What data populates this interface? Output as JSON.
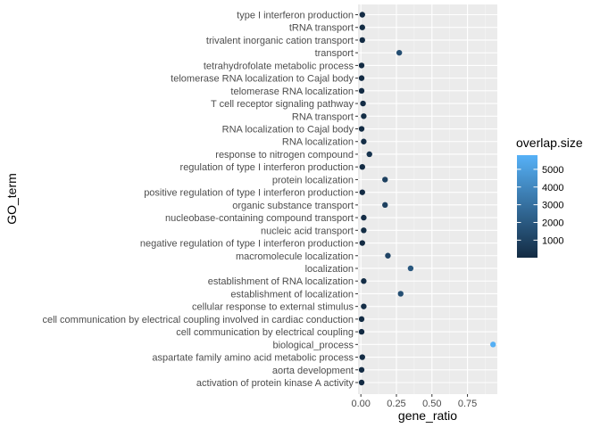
{
  "chart_data": {
    "type": "scatter",
    "xlabel": "gene_ratio",
    "ylabel": "GO_term",
    "xlim": [
      -0.02,
      0.96
    ],
    "x_ticks": [
      0.0,
      0.25,
      0.5,
      0.75
    ],
    "x_tick_labels": [
      "0.00",
      "0.25",
      "0.50",
      "0.75"
    ],
    "grid": true,
    "legend": {
      "title": "overlap.size",
      "placement": "right",
      "type": "colorbar",
      "min": 10,
      "max": 5800,
      "breaks": [
        1000,
        2000,
        3000,
        4000,
        5000
      ],
      "labels": [
        "1000",
        "2000",
        "3000",
        "4000",
        "5000"
      ],
      "color_low": "#132B43",
      "color_high": "#56B1F7"
    },
    "points": [
      {
        "term": "type I interferon production",
        "x": 0.01,
        "size": 60
      },
      {
        "term": "tRNA transport",
        "x": 0.01,
        "size": 50
      },
      {
        "term": "trivalent inorganic cation transport",
        "x": 0.01,
        "size": 20
      },
      {
        "term": "transport",
        "x": 0.27,
        "size": 1500
      },
      {
        "term": "tetrahydrofolate metabolic process",
        "x": 0.005,
        "size": 10
      },
      {
        "term": "telomerase RNA localization to Cajal body",
        "x": 0.005,
        "size": 10
      },
      {
        "term": "telomerase RNA localization",
        "x": 0.005,
        "size": 10
      },
      {
        "term": "T cell receptor signaling pathway",
        "x": 0.015,
        "size": 100
      },
      {
        "term": "RNA transport",
        "x": 0.02,
        "size": 120
      },
      {
        "term": "RNA localization to Cajal body",
        "x": 0.005,
        "size": 10
      },
      {
        "term": "RNA localization",
        "x": 0.02,
        "size": 130
      },
      {
        "term": "response to nitrogen compound",
        "x": 0.06,
        "size": 350
      },
      {
        "term": "regulation of type I interferon production",
        "x": 0.01,
        "size": 40
      },
      {
        "term": "protein localization",
        "x": 0.17,
        "size": 950
      },
      {
        "term": "positive regulation of type I interferon production",
        "x": 0.01,
        "size": 30
      },
      {
        "term": "organic substance transport",
        "x": 0.17,
        "size": 950
      },
      {
        "term": "nucleobase-containing compound transport",
        "x": 0.02,
        "size": 140
      },
      {
        "term": "nucleic acid transport",
        "x": 0.02,
        "size": 120
      },
      {
        "term": "negative regulation of type I interferon production",
        "x": 0.01,
        "size": 20
      },
      {
        "term": "macromolecule localization",
        "x": 0.19,
        "size": 1100
      },
      {
        "term": "localization",
        "x": 0.35,
        "size": 1900
      },
      {
        "term": "establishment of RNA localization",
        "x": 0.02,
        "size": 130
      },
      {
        "term": "establishment of localization",
        "x": 0.28,
        "size": 1550
      },
      {
        "term": "cellular response to external stimulus",
        "x": 0.02,
        "size": 150
      },
      {
        "term": "cell communication by electrical coupling involved in cardiac conduction",
        "x": 0.005,
        "size": 10
      },
      {
        "term": "cell communication by electrical coupling",
        "x": 0.005,
        "size": 10
      },
      {
        "term": "biological_process",
        "x": 0.93,
        "size": 5700
      },
      {
        "term": "aspartate family amino acid metabolic process",
        "x": 0.01,
        "size": 60
      },
      {
        "term": "aorta development",
        "x": 0.005,
        "size": 20
      },
      {
        "term": "activation of protein kinase A activity",
        "x": 0.005,
        "size": 10
      }
    ]
  }
}
